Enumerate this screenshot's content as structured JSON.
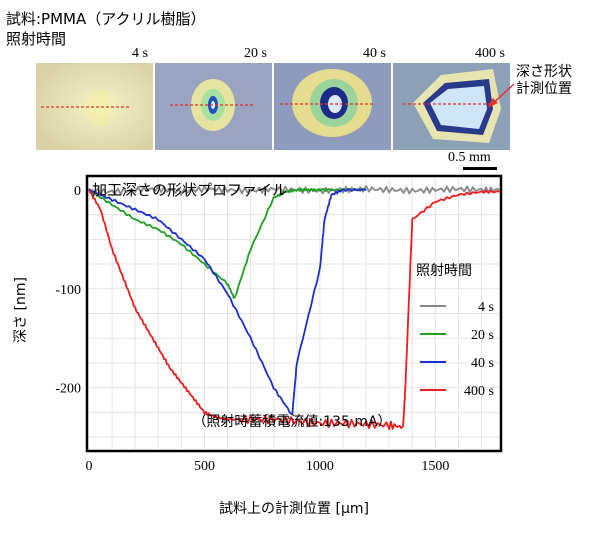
{
  "header": {
    "sample": "試料:PMMA（アクリル樹脂）",
    "irradiation_time_label": "照射時間",
    "times": [
      "4 s",
      "20 s",
      "40 s",
      "400 s"
    ],
    "depth_shape_label_line1": "深さ形状",
    "depth_shape_label_line2": "計測位置",
    "scale": "0.5 mm"
  },
  "colors": {
    "series_4s": "#888888",
    "series_20s": "#1fa022",
    "series_40s": "#1a2fd0",
    "series_400s": "#ee1c1c",
    "marker_line": "#e03030"
  },
  "chart_data": {
    "type": "line",
    "title": "加工深さの形状プロファイル",
    "annotation": "（照射時蓄積電流値:135 mA）",
    "xlabel": "試料上の計測位置 [μm]",
    "ylabel": "深さ [nm]",
    "xlim": [
      0,
      1780
    ],
    "ylim": [
      -262,
      12
    ],
    "xticks": [
      0,
      500,
      1000,
      1500
    ],
    "yticks": [
      0,
      -100,
      -200
    ],
    "ytick_labels": [
      "0",
      "-100",
      "-200"
    ],
    "grid": true,
    "legend_title": "照射時間",
    "legend_position": "right",
    "series": [
      {
        "name": "4 s",
        "color": "#888888",
        "x": [
          0,
          100,
          200,
          300,
          400,
          500,
          600,
          700,
          800,
          900,
          1000,
          1100,
          1200,
          1300,
          1400,
          1500,
          1600,
          1700,
          1780
        ],
        "y": [
          -1,
          -2,
          0,
          1,
          -2,
          1,
          0,
          -1,
          1,
          0,
          -1,
          0,
          1,
          0,
          -1,
          0,
          1,
          0,
          0
        ]
      },
      {
        "name": "20 s",
        "color": "#1fa022",
        "x": [
          0,
          100,
          200,
          300,
          400,
          500,
          600,
          630,
          700,
          800,
          850,
          900,
          950,
          1000,
          1100,
          1200
        ],
        "y": [
          0,
          -15,
          -30,
          -40,
          -55,
          -75,
          -95,
          -110,
          -60,
          -8,
          -2,
          0,
          0,
          0,
          0,
          0
        ]
      },
      {
        "name": "40 s",
        "color": "#1a2fd0",
        "x": [
          0,
          100,
          200,
          300,
          400,
          500,
          600,
          700,
          800,
          880,
          900,
          1000,
          1020,
          1050,
          1100,
          1200
        ],
        "y": [
          0,
          -10,
          -20,
          -30,
          -50,
          -70,
          -105,
          -150,
          -200,
          -228,
          -175,
          -80,
          -30,
          -5,
          0,
          0
        ]
      },
      {
        "name": "400 s",
        "color": "#ee1c1c",
        "x": [
          0,
          50,
          100,
          150,
          200,
          250,
          300,
          350,
          400,
          450,
          500,
          550,
          600,
          700,
          800,
          900,
          1000,
          1100,
          1200,
          1300,
          1360,
          1370,
          1400,
          1500,
          1600,
          1700,
          1780
        ],
        "y": [
          0,
          -20,
          -60,
          -90,
          -120,
          -140,
          -160,
          -180,
          -195,
          -210,
          -225,
          -230,
          -232,
          -232,
          -232,
          -234,
          -236,
          -236,
          -237,
          -238,
          -240,
          -200,
          -30,
          -12,
          -5,
          -2,
          -2
        ]
      }
    ]
  }
}
